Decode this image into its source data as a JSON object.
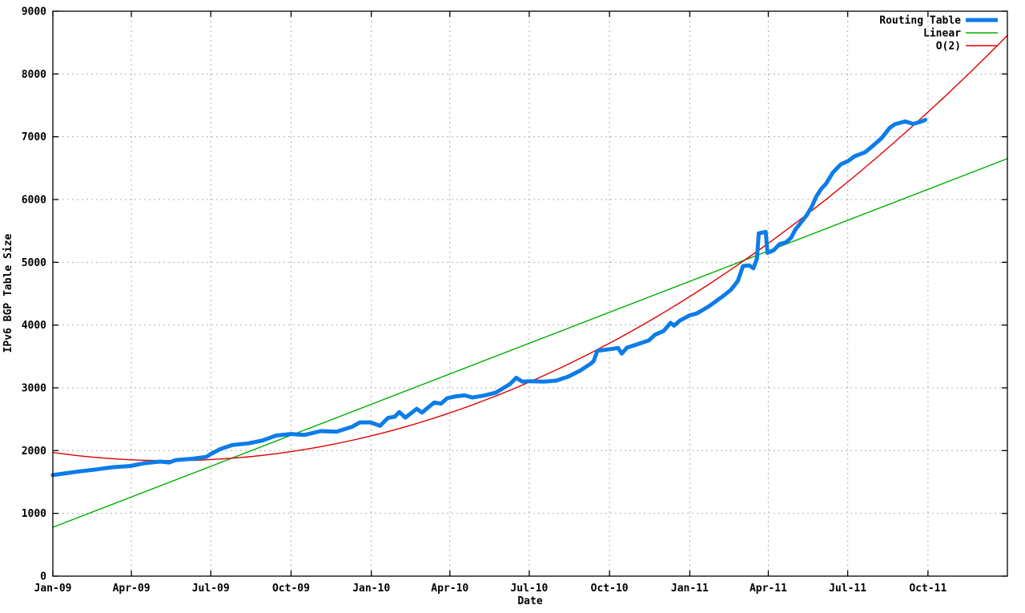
{
  "page": {
    "background": "#ffffff"
  },
  "chart_data": {
    "type": "line",
    "title": "",
    "xlabel": "Date",
    "ylabel": "IPv6 BGP Table Size",
    "grid": true,
    "legend_position": "top-right",
    "colors": {
      "axis": "#000000",
      "grid": "#b0b0b0",
      "text": "#000000"
    },
    "x_axis": {
      "unit": "days since 2009-01-01",
      "min": 0,
      "max": 1094,
      "ticks": [
        {
          "t": 0,
          "label": "Jan-09"
        },
        {
          "t": 90,
          "label": "Apr-09"
        },
        {
          "t": 181,
          "label": "Jul-09"
        },
        {
          "t": 273,
          "label": "Oct-09"
        },
        {
          "t": 365,
          "label": "Jan-10"
        },
        {
          "t": 455,
          "label": "Apr-10"
        },
        {
          "t": 546,
          "label": "Jul-10"
        },
        {
          "t": 638,
          "label": "Oct-10"
        },
        {
          "t": 730,
          "label": "Jan-11"
        },
        {
          "t": 820,
          "label": "Apr-11"
        },
        {
          "t": 911,
          "label": "Jul-11"
        },
        {
          "t": 1003,
          "label": "Oct-11"
        }
      ]
    },
    "y_axis": {
      "min": 0,
      "max": 9000,
      "ticks": [
        0,
        1000,
        2000,
        3000,
        4000,
        5000,
        6000,
        7000,
        8000,
        9000
      ]
    },
    "series": [
      {
        "name": "Routing Table",
        "color": "#0c7ce8",
        "width": 5,
        "kind": "points",
        "points": [
          [
            0,
            1610
          ],
          [
            13,
            1635
          ],
          [
            31,
            1670
          ],
          [
            50,
            1700
          ],
          [
            68,
            1735
          ],
          [
            89,
            1755
          ],
          [
            105,
            1800
          ],
          [
            123,
            1825
          ],
          [
            133,
            1810
          ],
          [
            141,
            1850
          ],
          [
            160,
            1870
          ],
          [
            176,
            1900
          ],
          [
            181,
            1945
          ],
          [
            192,
            2025
          ],
          [
            206,
            2090
          ],
          [
            224,
            2115
          ],
          [
            240,
            2160
          ],
          [
            256,
            2240
          ],
          [
            273,
            2265
          ],
          [
            288,
            2250
          ],
          [
            307,
            2310
          ],
          [
            325,
            2300
          ],
          [
            343,
            2380
          ],
          [
            352,
            2450
          ],
          [
            364,
            2450
          ],
          [
            375,
            2395
          ],
          [
            384,
            2520
          ],
          [
            392,
            2540
          ],
          [
            397,
            2615
          ],
          [
            404,
            2525
          ],
          [
            417,
            2665
          ],
          [
            423,
            2605
          ],
          [
            437,
            2765
          ],
          [
            445,
            2750
          ],
          [
            452,
            2835
          ],
          [
            462,
            2865
          ],
          [
            472,
            2880
          ],
          [
            481,
            2845
          ],
          [
            495,
            2880
          ],
          [
            508,
            2925
          ],
          [
            524,
            3060
          ],
          [
            531,
            3160
          ],
          [
            538,
            3100
          ],
          [
            546,
            3105
          ],
          [
            563,
            3100
          ],
          [
            577,
            3115
          ],
          [
            591,
            3180
          ],
          [
            605,
            3280
          ],
          [
            617,
            3390
          ],
          [
            620,
            3430
          ],
          [
            624,
            3590
          ],
          [
            638,
            3615
          ],
          [
            648,
            3635
          ],
          [
            652,
            3545
          ],
          [
            658,
            3640
          ],
          [
            669,
            3690
          ],
          [
            683,
            3755
          ],
          [
            690,
            3845
          ],
          [
            700,
            3905
          ],
          [
            708,
            4035
          ],
          [
            712,
            3990
          ],
          [
            719,
            4075
          ],
          [
            730,
            4155
          ],
          [
            738,
            4185
          ],
          [
            743,
            4225
          ],
          [
            751,
            4290
          ],
          [
            759,
            4370
          ],
          [
            768,
            4460
          ],
          [
            777,
            4560
          ],
          [
            785,
            4700
          ],
          [
            791,
            4940
          ],
          [
            798,
            4950
          ],
          [
            803,
            4905
          ],
          [
            807,
            5060
          ],
          [
            809,
            5460
          ],
          [
            817,
            5485
          ],
          [
            819,
            5150
          ],
          [
            826,
            5190
          ],
          [
            833,
            5290
          ],
          [
            840,
            5315
          ],
          [
            846,
            5390
          ],
          [
            851,
            5520
          ],
          [
            858,
            5645
          ],
          [
            864,
            5750
          ],
          [
            870,
            5890
          ],
          [
            875,
            6050
          ],
          [
            881,
            6175
          ],
          [
            886,
            6250
          ],
          [
            894,
            6430
          ],
          [
            903,
            6560
          ],
          [
            911,
            6610
          ],
          [
            919,
            6690
          ],
          [
            931,
            6755
          ],
          [
            941,
            6870
          ],
          [
            950,
            6980
          ],
          [
            959,
            7140
          ],
          [
            965,
            7200
          ],
          [
            977,
            7245
          ],
          [
            986,
            7205
          ],
          [
            996,
            7245
          ],
          [
            1000,
            7270
          ]
        ]
      },
      {
        "name": "Linear",
        "color": "#00b000",
        "width": 1.4,
        "kind": "linear",
        "intercept": 779,
        "slope": 5.368
      },
      {
        "name": "O(2)",
        "color": "#dd0000",
        "width": 1.4,
        "kind": "quadratic",
        "a": 0.007335,
        "b": -1.951,
        "c": 1970
      }
    ]
  }
}
